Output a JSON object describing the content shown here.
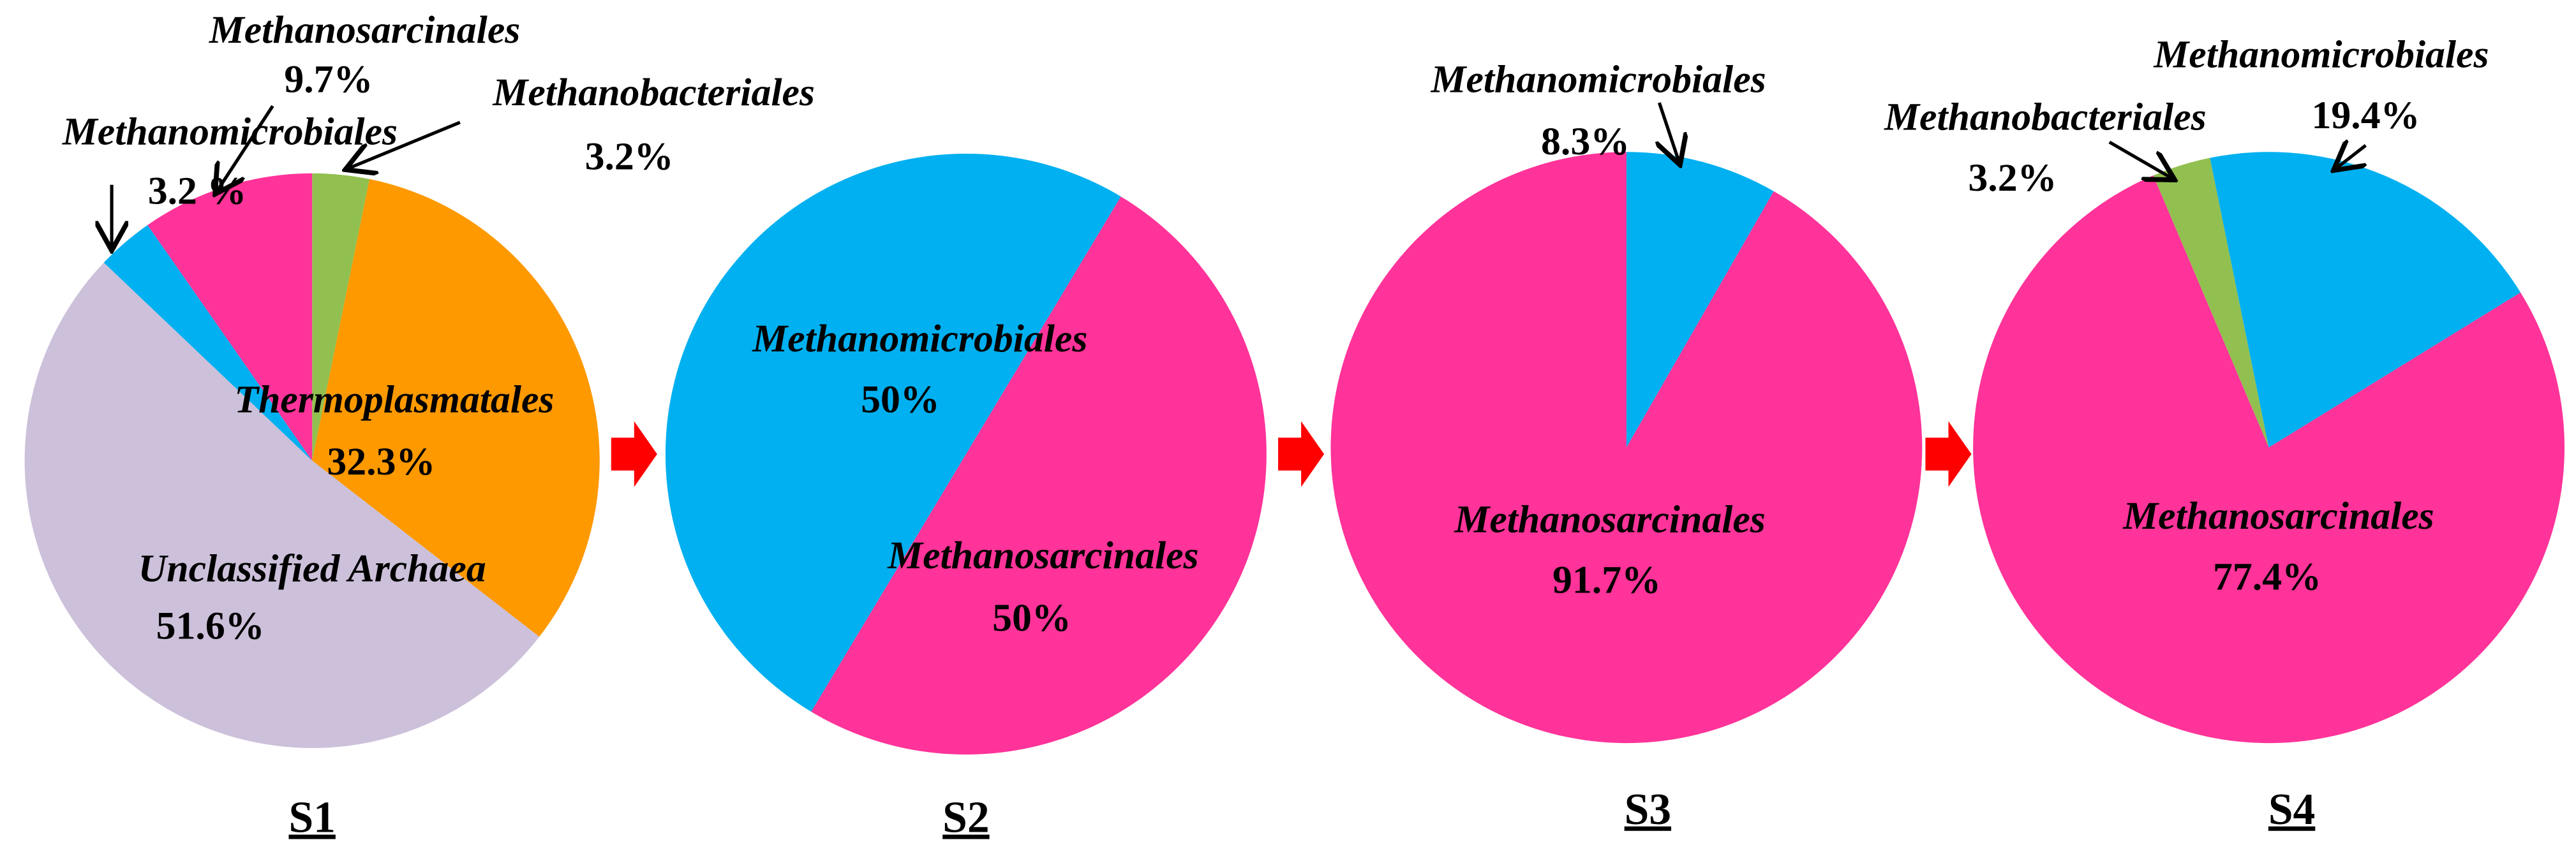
{
  "chart_data": [
    {
      "type": "pie",
      "title": "S1",
      "categories": [
        "Methanobacteriales",
        "Thermoplasmatales",
        "Unclassified Archaea",
        "Methanomicrobiales",
        "Methanosarcinales"
      ],
      "values": [
        3.2,
        32.3,
        51.6,
        3.2,
        9.7
      ],
      "value_labels": [
        "3.2%",
        "32.3%",
        "51.6%",
        "3.2 %",
        "9.7%"
      ],
      "colors": [
        "#92c050",
        "#ff9900",
        "#ccc0da",
        "#00b0f0",
        "#ff3399"
      ]
    },
    {
      "type": "pie",
      "title": "S2",
      "categories": [
        "Methanosarcinales",
        "Methanomicrobiales"
      ],
      "values": [
        50,
        50
      ],
      "value_labels": [
        "50%",
        "50%"
      ],
      "colors": [
        "#ff3399",
        "#00b0f0"
      ]
    },
    {
      "type": "pie",
      "title": "S3",
      "categories": [
        "Methanomicrobiales",
        "Methanosarcinales"
      ],
      "values": [
        8.3,
        91.7
      ],
      "value_labels": [
        "8.3%",
        "91.7%"
      ],
      "colors": [
        "#00b0f0",
        "#ff3399"
      ]
    },
    {
      "type": "pie",
      "title": "S4",
      "categories": [
        "Methanobacteriales",
        "Methanomicrobiales",
        "Methanosarcinales"
      ],
      "values": [
        3.2,
        19.4,
        77.4
      ],
      "value_labels": [
        "3.2%",
        "19.4%",
        "77.4%"
      ],
      "colors": [
        "#92c050",
        "#00b0f0",
        "#ff3399"
      ]
    }
  ]
}
